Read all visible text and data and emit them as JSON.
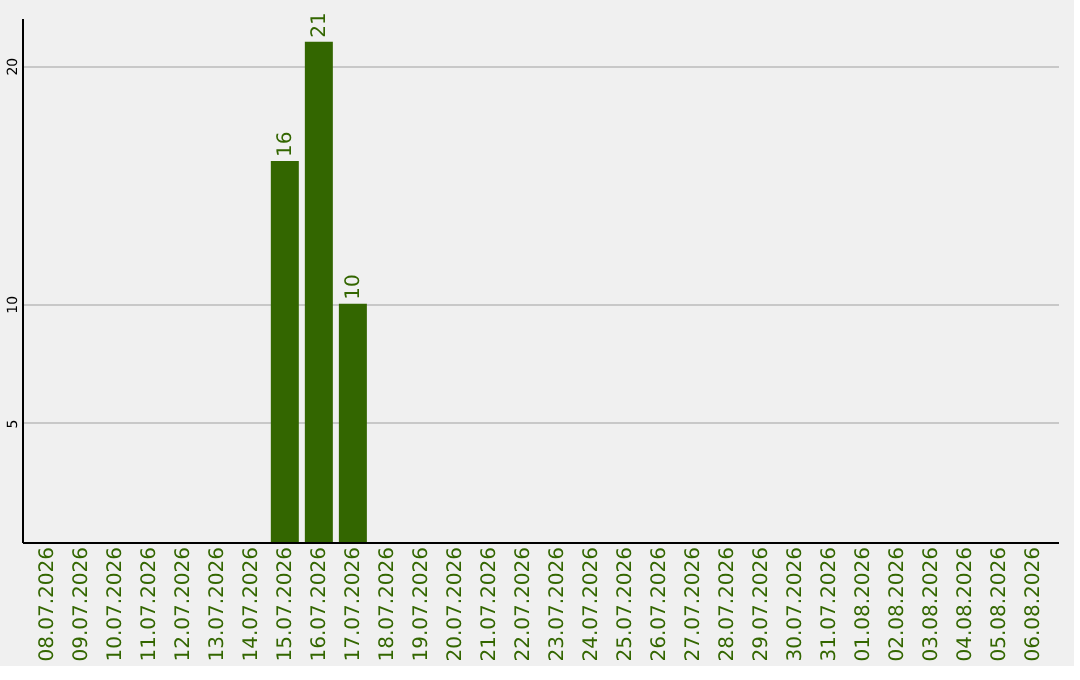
{
  "chart_data": {
    "type": "bar",
    "categories": [
      "08.07.2026",
      "09.07.2026",
      "10.07.2026",
      "11.07.2026",
      "12.07.2026",
      "13.07.2026",
      "14.07.2026",
      "15.07.2026",
      "16.07.2026",
      "17.07.2026",
      "18.07.2026",
      "19.07.2026",
      "20.07.2026",
      "21.07.2026",
      "22.07.2026",
      "23.07.2026",
      "24.07.2026",
      "25.07.2026",
      "26.07.2026",
      "27.07.2026",
      "28.07.2026",
      "29.07.2026",
      "30.07.2026",
      "31.07.2026",
      "01.08.2026",
      "02.08.2026",
      "03.08.2026",
      "04.08.2026",
      "05.08.2026",
      "06.08.2026"
    ],
    "values": [
      null,
      null,
      null,
      null,
      null,
      null,
      null,
      16,
      21,
      10,
      null,
      null,
      null,
      null,
      null,
      null,
      null,
      null,
      null,
      null,
      null,
      null,
      null,
      null,
      null,
      null,
      null,
      null,
      null,
      null
    ],
    "color": "#336600",
    "ylim": [
      0,
      22
    ],
    "yticks": [
      5,
      10,
      20
    ],
    "grid": "y",
    "data_labels": true
  }
}
